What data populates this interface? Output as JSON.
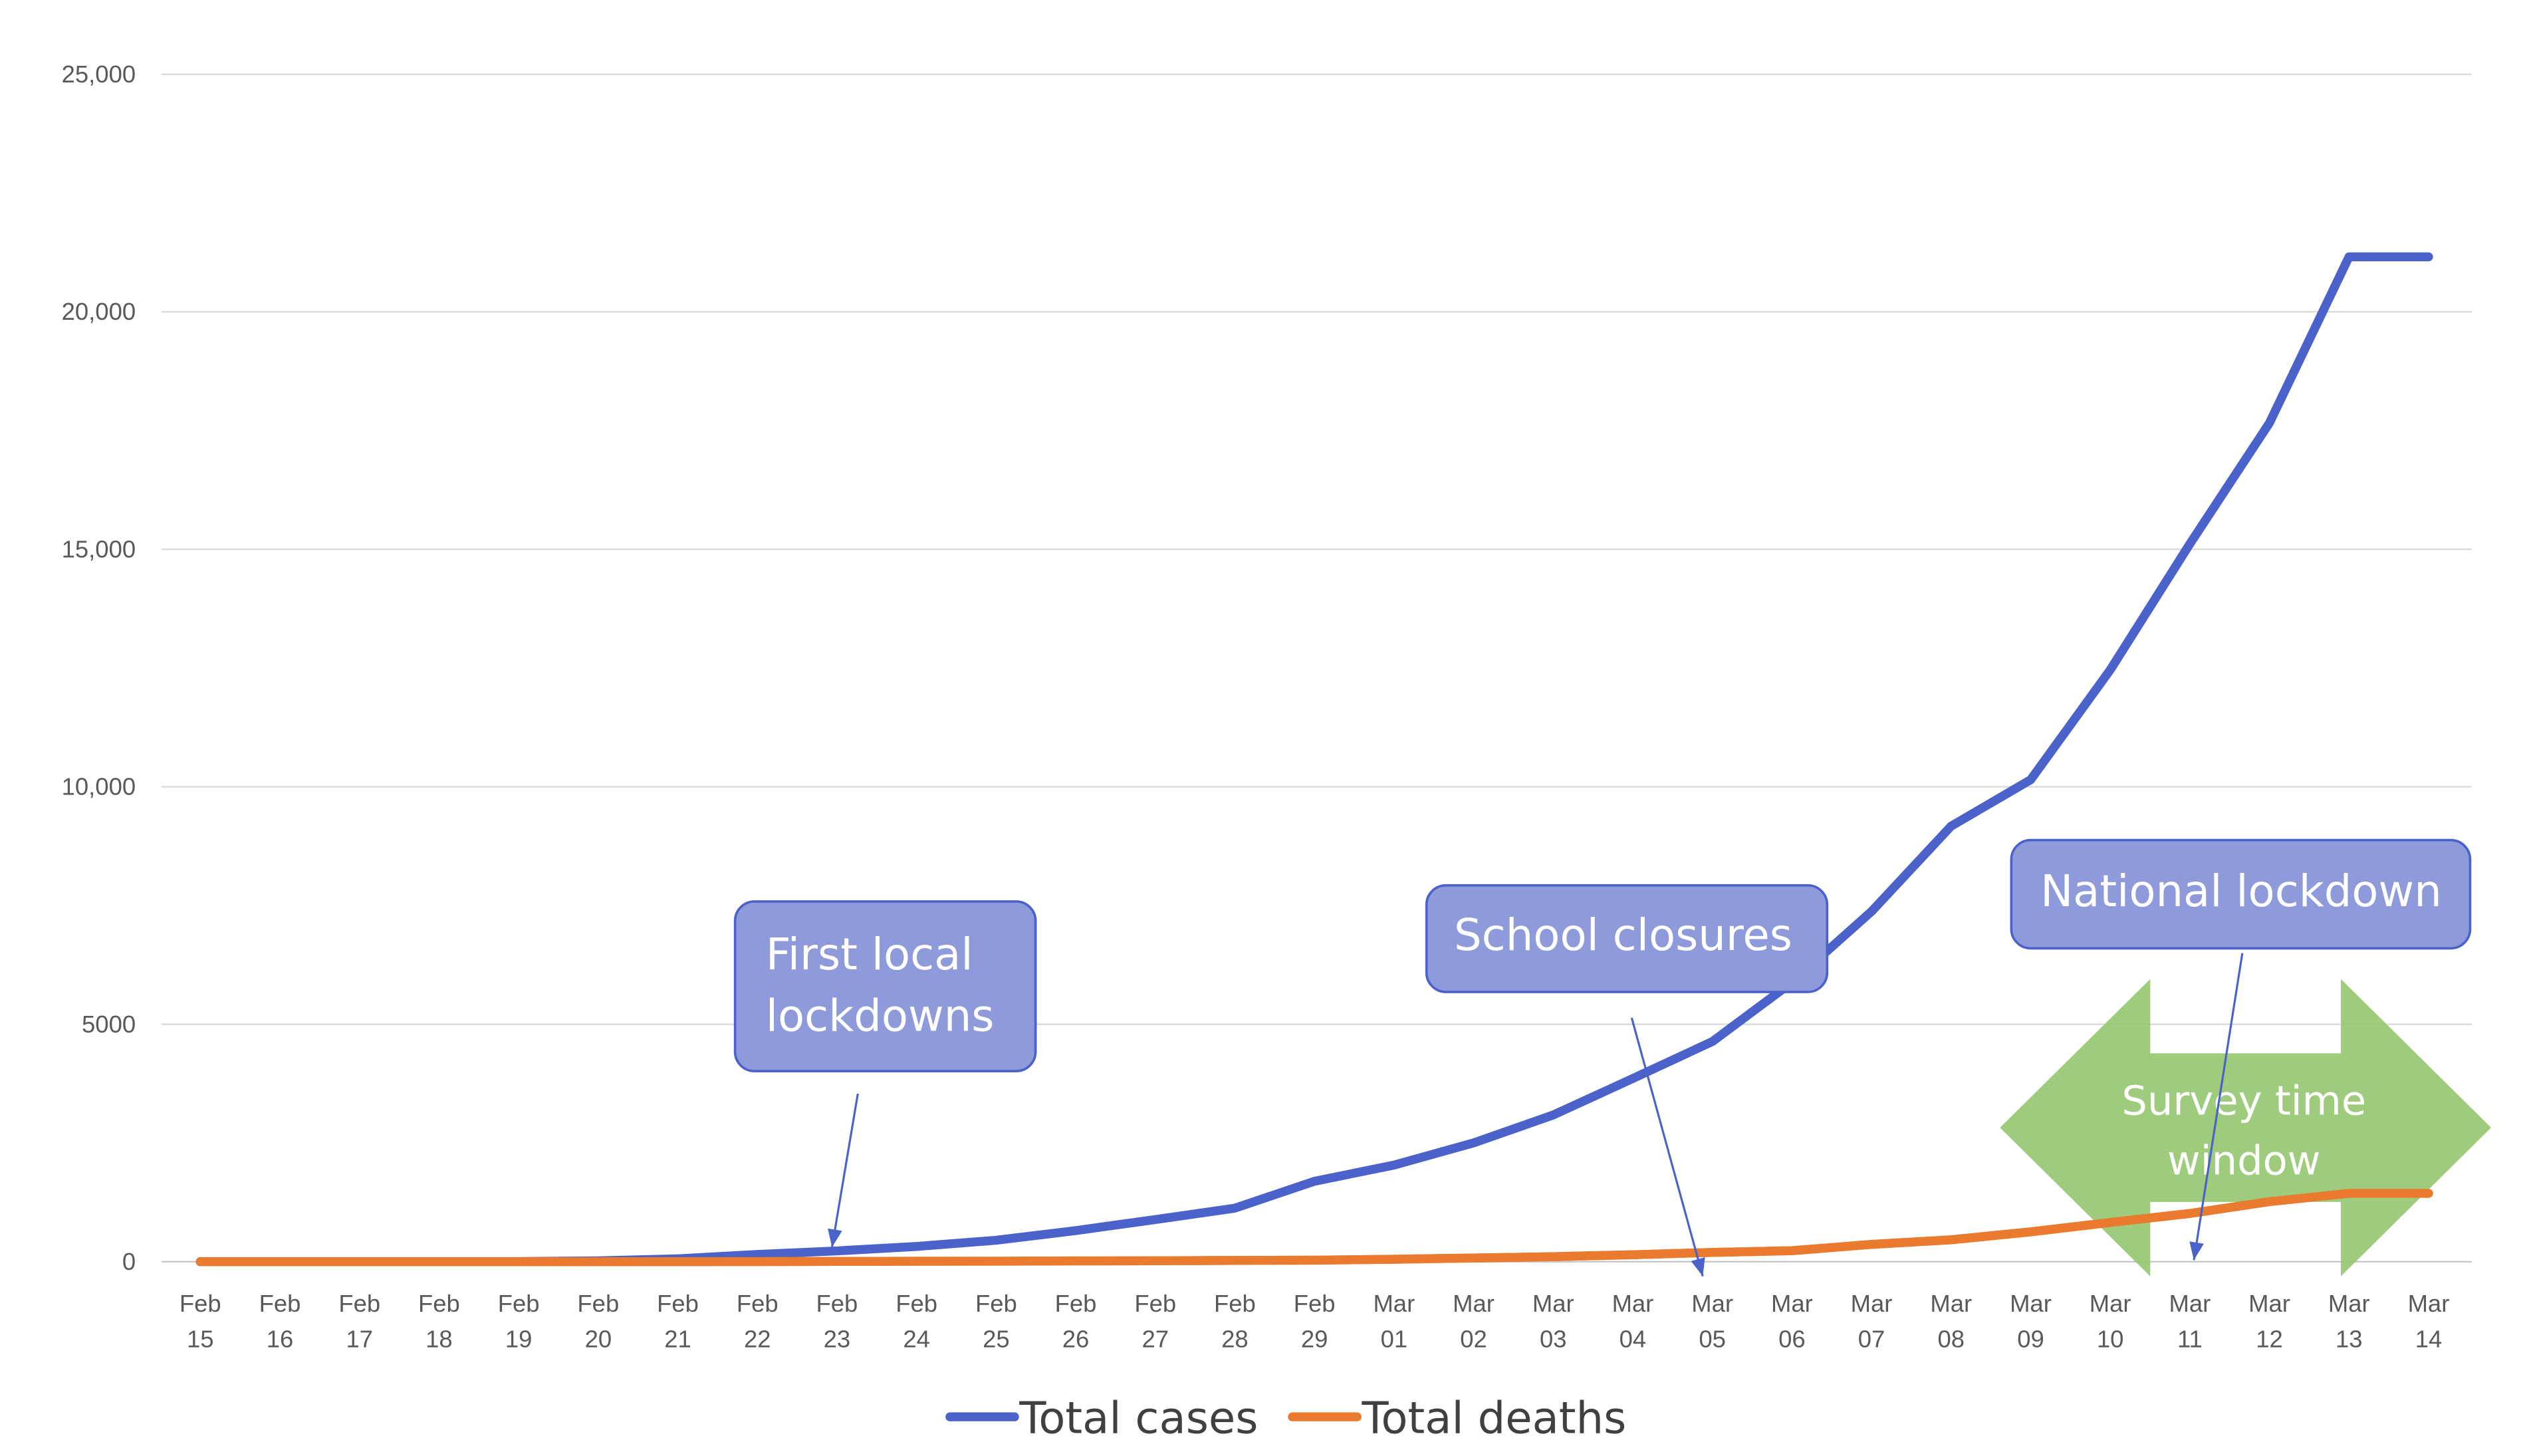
{
  "chart_data": {
    "type": "line",
    "title": "",
    "xlabel": "",
    "ylabel": "",
    "ylim": [
      0,
      25000
    ],
    "y_ticks": [
      "0",
      "5000",
      "10,000",
      "15,000",
      "20,000",
      "25,000"
    ],
    "y_tick_values": [
      0,
      5000,
      10000,
      15000,
      20000,
      25000
    ],
    "grid": true,
    "legend_position": "bottom",
    "categories": [
      [
        "Feb",
        "15"
      ],
      [
        "Feb",
        "16"
      ],
      [
        "Feb",
        "17"
      ],
      [
        "Feb",
        "18"
      ],
      [
        "Feb",
        "19"
      ],
      [
        "Feb",
        "20"
      ],
      [
        "Feb",
        "21"
      ],
      [
        "Feb",
        "22"
      ],
      [
        "Feb",
        "23"
      ],
      [
        "Feb",
        "24"
      ],
      [
        "Feb",
        "25"
      ],
      [
        "Feb",
        "26"
      ],
      [
        "Feb",
        "27"
      ],
      [
        "Feb",
        "28"
      ],
      [
        "Feb",
        "29"
      ],
      [
        "Mar",
        "01"
      ],
      [
        "Mar",
        "02"
      ],
      [
        "Mar",
        "03"
      ],
      [
        "Mar",
        "04"
      ],
      [
        "Mar",
        "05"
      ],
      [
        "Mar",
        "06"
      ],
      [
        "Mar",
        "07"
      ],
      [
        "Mar",
        "08"
      ],
      [
        "Mar",
        "09"
      ],
      [
        "Mar",
        "10"
      ],
      [
        "Mar",
        "11"
      ],
      [
        "Mar",
        "12"
      ],
      [
        "Mar",
        "13"
      ],
      [
        "Mar",
        "14"
      ]
    ],
    "series": [
      {
        "name": "Total cases",
        "color": "#4a62c9",
        "values": [
          3,
          3,
          3,
          3,
          3,
          20,
          62,
          155,
          229,
          322,
          453,
          655,
          888,
          1128,
          1694,
          2036,
          2502,
          3089,
          3858,
          4636,
          5883,
          7375,
          9172,
          10149,
          12462,
          15113,
          17660,
          21157,
          21157
        ]
      },
      {
        "name": "Total deaths",
        "color": "#e97a2e",
        "values": [
          0,
          0,
          0,
          0,
          0,
          1,
          2,
          3,
          7,
          10,
          12,
          17,
          21,
          29,
          34,
          52,
          79,
          107,
          148,
          197,
          233,
          366,
          463,
          631,
          827,
          1016,
          1266,
          1441,
          1441
        ]
      }
    ],
    "annotations": [
      {
        "id": "first-local-lockdowns",
        "lines": [
          "First local",
          "lockdowns"
        ],
        "fill": "#8e9ad9",
        "stroke": "#4a62c9"
      },
      {
        "id": "school-closures",
        "lines": [
          "School closures"
        ],
        "fill": "#8e9ad9",
        "stroke": "#4a62c9"
      },
      {
        "id": "national-lockdown",
        "lines": [
          "National lockdown"
        ],
        "fill": "#8e9ad9",
        "stroke": "#4a62c9"
      },
      {
        "id": "survey-time-window",
        "lines": [
          "Survey time",
          "window"
        ],
        "fill": "#94c66e",
        "stroke": "none"
      }
    ]
  }
}
